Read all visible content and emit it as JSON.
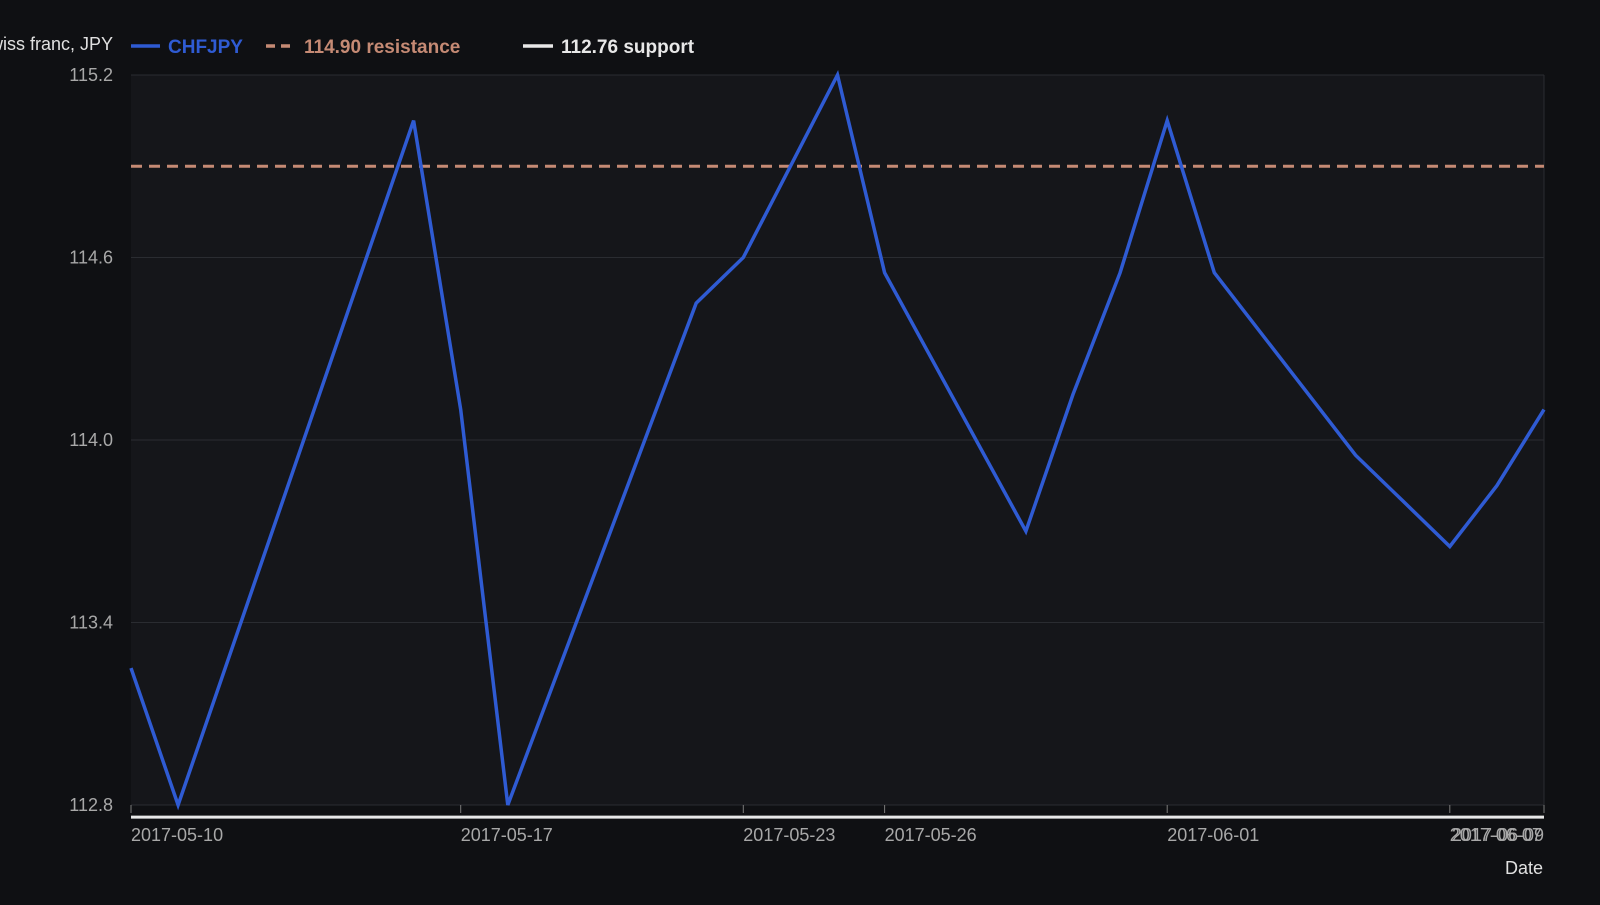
{
  "chart_data": {
    "type": "line",
    "ylabel": "Swiss franc, JPY",
    "xlabel": "Date",
    "ylim": [
      112.8,
      115.2
    ],
    "y_ticks": [
      "112.8",
      "113.4",
      "114.0",
      "114.6",
      "115.2"
    ],
    "x_range": [
      "2017-05-10",
      "2017-06-09"
    ],
    "x_ticks": [
      "2017-05-10",
      "2017-05-17",
      "2017-05-23",
      "2017-05-26",
      "2017-06-01",
      "2017-06-07",
      "2017-06-09"
    ],
    "grid": true,
    "legend_position": "top-left",
    "series": [
      {
        "name": "CHFJPY",
        "color": "#2f5bd3",
        "x": [
          "2017-05-10",
          "2017-05-11",
          "2017-05-16",
          "2017-05-17",
          "2017-05-18",
          "2017-05-22",
          "2017-05-23",
          "2017-05-25",
          "2017-05-26",
          "2017-05-29",
          "2017-05-30",
          "2017-05-31",
          "2017-06-01",
          "2017-06-02",
          "2017-06-05",
          "2017-06-06",
          "2017-06-07",
          "2017-06-08",
          "2017-06-09"
        ],
        "values": [
          113.25,
          112.8,
          115.05,
          114.1,
          112.8,
          114.45,
          114.6,
          115.2,
          114.55,
          113.7,
          114.15,
          114.55,
          115.05,
          114.55,
          113.95,
          113.8,
          113.65,
          113.85,
          114.1
        ]
      }
    ],
    "reference_lines": [
      {
        "name": "114.90 resistance",
        "value": 114.9,
        "color": "#c58a74",
        "dash": true
      },
      {
        "name": "112.76 support",
        "value": 112.76,
        "color": "#e8e8e8",
        "dash": false
      }
    ]
  }
}
